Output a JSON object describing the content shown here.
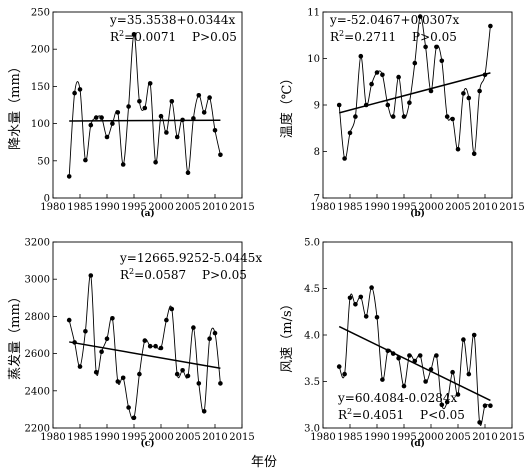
{
  "figure": {
    "x_axis_label": "年份"
  },
  "chart_data": [
    {
      "id": "a",
      "type": "line",
      "caption": "(a)",
      "ylabel": "降水量（mm）",
      "xlim": [
        1980,
        2015
      ],
      "ylim": [
        0,
        250
      ],
      "xticks": [
        "1980",
        "1985",
        "1990",
        "1995",
        "2000",
        "2005",
        "2010",
        "2015"
      ],
      "yticks": [
        "0",
        "50",
        "100",
        "150",
        "200",
        "250"
      ],
      "x": [
        1983,
        1984,
        1985,
        1986,
        1987,
        1988,
        1989,
        1990,
        1991,
        1992,
        1993,
        1994,
        1995,
        1996,
        1997,
        1998,
        1999,
        2000,
        2001,
        2002,
        2003,
        2004,
        2005,
        2006,
        2007,
        2008,
        2009,
        2010,
        2011
      ],
      "y": [
        29,
        141,
        146,
        51,
        98,
        108,
        108,
        82,
        100,
        115,
        45,
        123,
        220,
        130,
        121,
        154,
        48,
        110,
        88,
        130,
        82,
        105,
        34,
        107,
        138,
        115,
        135,
        91,
        58
      ],
      "trend": {
        "slope": 0.0344,
        "intercept": 35.3538
      },
      "equation": "y=35.3538+0.0344x",
      "r2_value": "=0.0071",
      "p_value": "P>0.05"
    },
    {
      "id": "b",
      "type": "line",
      "caption": "(b)",
      "ylabel": "温度（℃）",
      "xlim": [
        1980,
        2015
      ],
      "ylim": [
        7,
        11
      ],
      "xticks": [
        "1980",
        "1985",
        "1990",
        "1995",
        "2000",
        "2005",
        "2010",
        "2015"
      ],
      "yticks": [
        "7",
        "8",
        "9",
        "10",
        "11"
      ],
      "x": [
        1983,
        1984,
        1985,
        1986,
        1987,
        1988,
        1989,
        1990,
        1991,
        1992,
        1993,
        1994,
        1995,
        1996,
        1997,
        1998,
        1999,
        2000,
        2001,
        2002,
        2003,
        2004,
        2005,
        2006,
        2007,
        2008,
        2009,
        2010,
        2011
      ],
      "y": [
        9.0,
        7.85,
        8.4,
        8.75,
        10.05,
        9.0,
        9.45,
        9.7,
        9.65,
        9.0,
        8.75,
        9.6,
        8.75,
        9.05,
        9.9,
        10.9,
        10.25,
        9.3,
        10.25,
        9.95,
        8.75,
        8.7,
        8.05,
        9.25,
        9.15,
        7.95,
        9.3,
        9.65,
        10.7
      ],
      "trend": {
        "slope": 0.0307,
        "intercept": -52.0467
      },
      "equation": "y=-52.0467+0.0307x",
      "r2_value": "=0.2711",
      "p_value": "P>0.05"
    },
    {
      "id": "c",
      "type": "line",
      "caption": "(c)",
      "ylabel": "蒸发量（mm）",
      "xlim": [
        1980,
        2015
      ],
      "ylim": [
        2200,
        3200
      ],
      "xticks": [
        "1980",
        "1985",
        "1990",
        "1995",
        "2000",
        "2005",
        "2010",
        "2015"
      ],
      "yticks": [
        "2200",
        "2400",
        "2600",
        "2800",
        "3000",
        "3200"
      ],
      "x": [
        1983,
        1984,
        1985,
        1986,
        1987,
        1988,
        1989,
        1990,
        1991,
        1992,
        1993,
        1994,
        1995,
        1996,
        1997,
        1998,
        1999,
        2000,
        2001,
        2002,
        2003,
        2004,
        2005,
        2006,
        2007,
        2008,
        2009,
        2010,
        2011
      ],
      "y": [
        2780,
        2660,
        2530,
        2720,
        3020,
        2500,
        2610,
        2680,
        2790,
        2450,
        2470,
        2310,
        2255,
        2490,
        2670,
        2640,
        2640,
        2630,
        2780,
        2840,
        2490,
        2510,
        2480,
        2740,
        2440,
        2290,
        2680,
        2710,
        2440
      ],
      "trend": {
        "slope": -5.0445,
        "intercept": 12665.9252
      },
      "equation": "y=12665.9252-5.0445x",
      "r2_value": "=0.0587",
      "p_value": "P>0.05"
    },
    {
      "id": "d",
      "type": "line",
      "caption": "(d)",
      "ylabel": "风速（m/s）",
      "xlim": [
        1980,
        2015
      ],
      "ylim": [
        3.0,
        5.0
      ],
      "xticks": [
        "1980",
        "1985",
        "1990",
        "1995",
        "2000",
        "2005",
        "2010",
        "2015"
      ],
      "yticks": [
        "3.0",
        "3.5",
        "4.0",
        "4.5",
        "5.0"
      ],
      "x": [
        1983,
        1984,
        1985,
        1986,
        1987,
        1988,
        1989,
        1990,
        1991,
        1992,
        1993,
        1994,
        1995,
        1996,
        1997,
        1998,
        1999,
        2000,
        2001,
        2002,
        2003,
        2004,
        2005,
        2006,
        2007,
        2008,
        2009,
        2010,
        2011
      ],
      "y": [
        3.66,
        3.58,
        4.4,
        4.33,
        4.41,
        4.2,
        4.51,
        4.19,
        3.52,
        3.83,
        3.8,
        3.75,
        3.45,
        3.78,
        3.72,
        3.78,
        3.5,
        3.63,
        3.78,
        3.25,
        3.28,
        3.6,
        3.36,
        3.95,
        3.58,
        4.0,
        3.06,
        3.24,
        3.24
      ],
      "trend": {
        "slope": -0.0284,
        "intercept": 60.4084
      },
      "equation": "y=60.4084-0.0284x",
      "r2_value": "=0.4051",
      "p_value": "P<0.05"
    }
  ]
}
